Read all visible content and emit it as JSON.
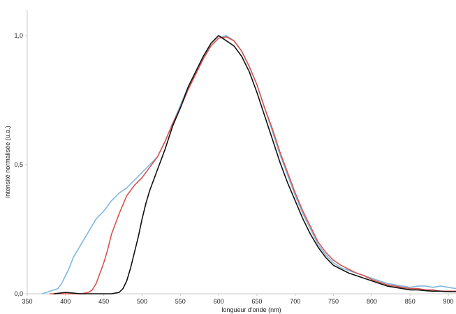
{
  "chart_data": {
    "type": "line",
    "title": "",
    "xlabel": "longueur d'onde (nm)",
    "ylabel": "intensité normalisée (u.a.)",
    "xlim": [
      350,
      910
    ],
    "ylim": [
      0,
      1.0
    ],
    "x_ticks": [
      "350",
      "400",
      "450",
      "500",
      "550",
      "600",
      "650",
      "700",
      "750",
      "800",
      "850",
      "900"
    ],
    "y_ticks": [
      "0,0",
      "0,5",
      "1,0"
    ],
    "grid": false,
    "legend": "none",
    "series": [
      {
        "color": "#7fb8e0",
        "points": [
          [
            370,
            0.0
          ],
          [
            380,
            0.01
          ],
          [
            390,
            0.02
          ],
          [
            395,
            0.04
          ],
          [
            400,
            0.07
          ],
          [
            405,
            0.1
          ],
          [
            410,
            0.14
          ],
          [
            420,
            0.19
          ],
          [
            430,
            0.24
          ],
          [
            440,
            0.29
          ],
          [
            450,
            0.32
          ],
          [
            460,
            0.36
          ],
          [
            470,
            0.39
          ],
          [
            480,
            0.41
          ],
          [
            490,
            0.44
          ],
          [
            500,
            0.47
          ],
          [
            510,
            0.5
          ],
          [
            520,
            0.53
          ],
          [
            530,
            0.59
          ],
          [
            540,
            0.66
          ],
          [
            550,
            0.73
          ],
          [
            560,
            0.8
          ],
          [
            570,
            0.86
          ],
          [
            580,
            0.92
          ],
          [
            590,
            0.96
          ],
          [
            600,
            0.99
          ],
          [
            610,
            1.0
          ],
          [
            620,
            0.98
          ],
          [
            630,
            0.94
          ],
          [
            640,
            0.88
          ],
          [
            650,
            0.81
          ],
          [
            660,
            0.72
          ],
          [
            670,
            0.63
          ],
          [
            680,
            0.54
          ],
          [
            690,
            0.46
          ],
          [
            700,
            0.38
          ],
          [
            710,
            0.31
          ],
          [
            720,
            0.25
          ],
          [
            730,
            0.19
          ],
          [
            740,
            0.15
          ],
          [
            750,
            0.12
          ],
          [
            760,
            0.1
          ],
          [
            770,
            0.09
          ],
          [
            780,
            0.08
          ],
          [
            790,
            0.07
          ],
          [
            800,
            0.06
          ],
          [
            810,
            0.05
          ],
          [
            820,
            0.04
          ],
          [
            830,
            0.035
          ],
          [
            840,
            0.03
          ],
          [
            850,
            0.025
          ],
          [
            860,
            0.03
          ],
          [
            870,
            0.03
          ],
          [
            880,
            0.025
          ],
          [
            890,
            0.03
          ],
          [
            900,
            0.025
          ],
          [
            910,
            0.02
          ]
        ]
      },
      {
        "color": "#d9534f",
        "points": [
          [
            380,
            0.0
          ],
          [
            390,
            0.0
          ],
          [
            400,
            0.0
          ],
          [
            410,
            0.0
          ],
          [
            420,
            0.0
          ],
          [
            430,
            0.005
          ],
          [
            435,
            0.015
          ],
          [
            440,
            0.04
          ],
          [
            445,
            0.08
          ],
          [
            450,
            0.12
          ],
          [
            455,
            0.17
          ],
          [
            460,
            0.23
          ],
          [
            470,
            0.31
          ],
          [
            480,
            0.38
          ],
          [
            490,
            0.42
          ],
          [
            500,
            0.45
          ],
          [
            510,
            0.49
          ],
          [
            520,
            0.53
          ],
          [
            530,
            0.59
          ],
          [
            540,
            0.66
          ],
          [
            550,
            0.72
          ],
          [
            560,
            0.79
          ],
          [
            570,
            0.85
          ],
          [
            580,
            0.91
          ],
          [
            590,
            0.96
          ],
          [
            600,
            0.99
          ],
          [
            610,
            0.995
          ],
          [
            620,
            0.98
          ],
          [
            630,
            0.94
          ],
          [
            640,
            0.88
          ],
          [
            650,
            0.81
          ],
          [
            660,
            0.72
          ],
          [
            670,
            0.64
          ],
          [
            680,
            0.55
          ],
          [
            690,
            0.47
          ],
          [
            700,
            0.39
          ],
          [
            710,
            0.32
          ],
          [
            720,
            0.26
          ],
          [
            730,
            0.2
          ],
          [
            740,
            0.16
          ],
          [
            750,
            0.13
          ],
          [
            760,
            0.11
          ],
          [
            770,
            0.095
          ],
          [
            780,
            0.08
          ],
          [
            790,
            0.07
          ],
          [
            800,
            0.055
          ],
          [
            810,
            0.045
          ],
          [
            820,
            0.035
          ],
          [
            830,
            0.03
          ],
          [
            840,
            0.025
          ],
          [
            850,
            0.02
          ],
          [
            860,
            0.02
          ],
          [
            870,
            0.015
          ],
          [
            880,
            0.015
          ],
          [
            890,
            0.01
          ],
          [
            900,
            0.01
          ],
          [
            910,
            0.01
          ]
        ]
      },
      {
        "color": "#111111",
        "points": [
          [
            385,
            0.0
          ],
          [
            400,
            0.005
          ],
          [
            420,
            0.0
          ],
          [
            440,
            0.0
          ],
          [
            460,
            0.0
          ],
          [
            470,
            0.005
          ],
          [
            475,
            0.02
          ],
          [
            480,
            0.05
          ],
          [
            485,
            0.1
          ],
          [
            490,
            0.16
          ],
          [
            495,
            0.22
          ],
          [
            500,
            0.29
          ],
          [
            505,
            0.35
          ],
          [
            510,
            0.4
          ],
          [
            520,
            0.48
          ],
          [
            530,
            0.56
          ],
          [
            540,
            0.65
          ],
          [
            550,
            0.72
          ],
          [
            560,
            0.8
          ],
          [
            570,
            0.86
          ],
          [
            580,
            0.92
          ],
          [
            590,
            0.97
          ],
          [
            600,
            1.0
          ],
          [
            605,
            0.99
          ],
          [
            610,
            0.98
          ],
          [
            620,
            0.96
          ],
          [
            630,
            0.92
          ],
          [
            640,
            0.86
          ],
          [
            650,
            0.78
          ],
          [
            660,
            0.69
          ],
          [
            670,
            0.6
          ],
          [
            680,
            0.51
          ],
          [
            690,
            0.43
          ],
          [
            700,
            0.36
          ],
          [
            710,
            0.29
          ],
          [
            720,
            0.23
          ],
          [
            730,
            0.18
          ],
          [
            740,
            0.14
          ],
          [
            750,
            0.11
          ],
          [
            760,
            0.095
          ],
          [
            770,
            0.08
          ],
          [
            780,
            0.07
          ],
          [
            790,
            0.06
          ],
          [
            800,
            0.05
          ],
          [
            810,
            0.04
          ],
          [
            820,
            0.03
          ],
          [
            830,
            0.025
          ],
          [
            840,
            0.02
          ],
          [
            850,
            0.015
          ],
          [
            860,
            0.015
          ],
          [
            870,
            0.012
          ],
          [
            880,
            0.01
          ],
          [
            890,
            0.01
          ],
          [
            900,
            0.008
          ],
          [
            910,
            0.008
          ]
        ]
      }
    ]
  }
}
